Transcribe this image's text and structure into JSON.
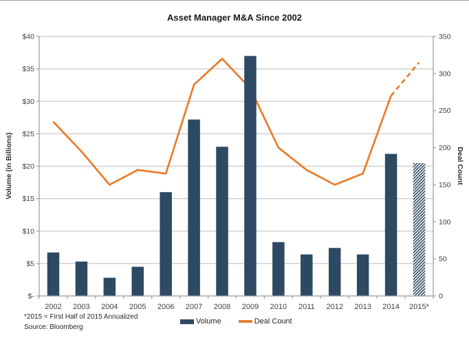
{
  "chart_data": {
    "type": "combo",
    "title": "Asset Manager M&A Since 2002",
    "categories": [
      "2002",
      "2003",
      "2004",
      "2005",
      "2006",
      "2007",
      "2008",
      "2009",
      "2010",
      "2011",
      "2012",
      "2013",
      "2014",
      "2015*"
    ],
    "series": [
      {
        "name": "Volume",
        "type": "bar",
        "axis": "left",
        "values": [
          6.7,
          5.3,
          2.8,
          4.5,
          16.0,
          27.2,
          23.0,
          37.0,
          8.3,
          6.4,
          7.4,
          6.4,
          21.9,
          20.5
        ],
        "note": "last bar (2015*) drawn with diagonal hatch fill"
      },
      {
        "name": "Deal Count",
        "type": "line",
        "axis": "right",
        "values": [
          235,
          195,
          150,
          170,
          165,
          285,
          320,
          280,
          200,
          170,
          150,
          165,
          270,
          315
        ],
        "note": "segment from 2014 to 2015* drawn dashed"
      }
    ],
    "y_left": {
      "label": "Volume (in Billions)",
      "min": 0,
      "max": 40,
      "ticks": [
        "$40",
        "$35",
        "$30",
        "$25",
        "$20",
        "$15",
        "$10",
        "$5",
        "$-"
      ]
    },
    "y_right": {
      "label": "Deal Count",
      "min": 0,
      "max": 350,
      "ticks": [
        "350",
        "300",
        "250",
        "200",
        "150",
        "100",
        "50",
        "0"
      ]
    },
    "legend": [
      "Volume",
      "Deal Count"
    ],
    "legend_position": "bottom",
    "grid": true,
    "footnotes": [
      "*2015 = First Half of 2015 Annualized",
      "Source: Bloomberg"
    ],
    "colors": {
      "bar": "#2e4a63",
      "line": "#e87e2e",
      "grid": "#c9c9c9",
      "axis": "#a0a0a0",
      "tick_text": "#404040"
    }
  }
}
